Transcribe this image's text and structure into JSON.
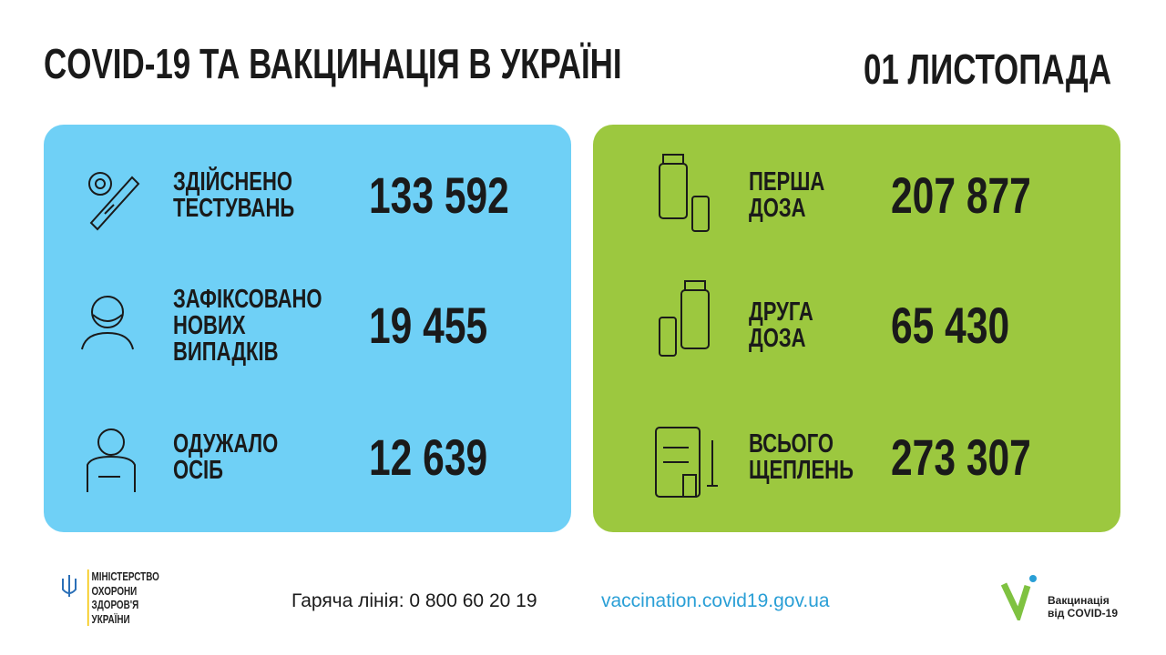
{
  "header": {
    "title": "COVID-19 ТА ВАКЦИНАЦІЯ В УКРАЇНІ",
    "date": "01 ЛИСТОПАДА"
  },
  "left_panel": [
    {
      "label": [
        "ЗДІЙСНЕНО",
        "ТЕСТУВАНЬ"
      ],
      "value": "133 592"
    },
    {
      "label": [
        "ЗАФІКСОВАНО",
        "НОВИХ",
        "ВИПАДКІВ"
      ],
      "value": "19 455"
    },
    {
      "label": [
        "ОДУЖАЛО",
        "ОСІБ"
      ],
      "value": "12 639"
    }
  ],
  "right_panel": [
    {
      "label": [
        "ПЕРША",
        "ДОЗА"
      ],
      "value": "207 877"
    },
    {
      "label": [
        "ДРУГА",
        "ДОЗА"
      ],
      "value": "65 430"
    },
    {
      "label": [
        "ВСЬОГО",
        "ЩЕПЛЕНЬ"
      ],
      "value": "273 307"
    }
  ],
  "footer": {
    "ministry": [
      "МІНІСТЕРСТВО",
      "ОХОРОНИ",
      "ЗДОРОВ'Я",
      "УКРАЇНИ"
    ],
    "hotline": "Гаряча лінія: 0 800 60 20 19",
    "url": "vaccination.covid19.gov.ua",
    "logo": [
      "Вакцинація",
      "від COVID-19"
    ]
  }
}
